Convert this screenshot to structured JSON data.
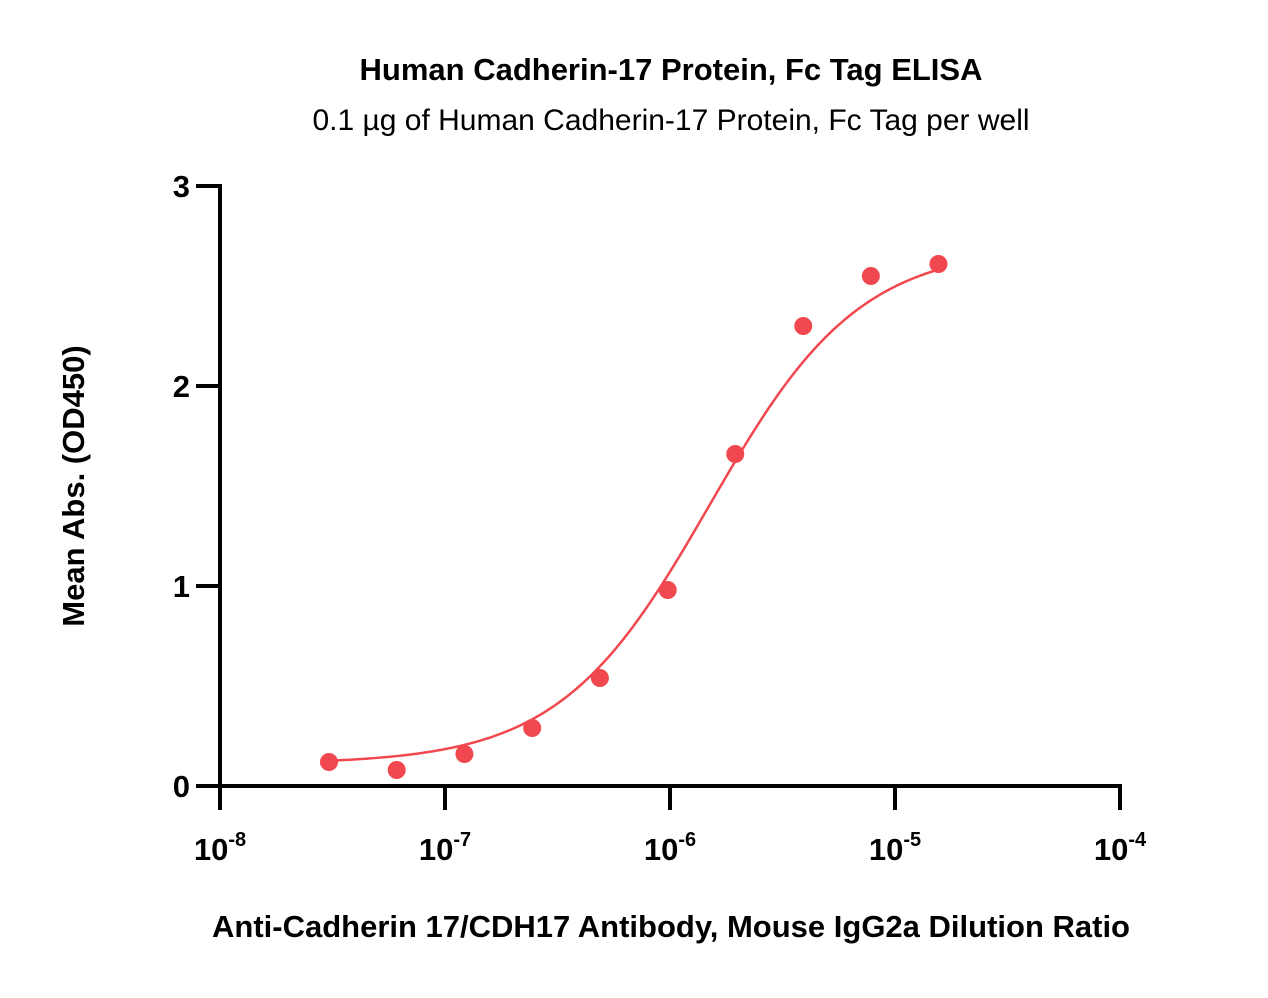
{
  "chart_data": {
    "type": "scatter",
    "title": "Human Cadherin-17 Protein, Fc Tag ELISA",
    "subtitle": "0.1 µg of Human Cadherin-17 Protein, Fc Tag per well",
    "xlabel": "Anti-Cadherin 17/CDH17 Antibody, Mouse IgG2a Dilution Ratio",
    "ylabel": "Mean Abs. (OD450)",
    "x_scale": "log",
    "xlim": [
      1e-08,
      0.0001
    ],
    "ylim": [
      0,
      3
    ],
    "x_ticks": [
      {
        "value": 1e-08,
        "base": "10",
        "exp": "-8"
      },
      {
        "value": 1e-07,
        "base": "10",
        "exp": "-7"
      },
      {
        "value": 1e-06,
        "base": "10",
        "exp": "-6"
      },
      {
        "value": 1e-05,
        "base": "10",
        "exp": "-5"
      },
      {
        "value": 0.0001,
        "base": "10",
        "exp": "-4"
      }
    ],
    "y_ticks": [
      {
        "value": 0,
        "label": "0"
      },
      {
        "value": 1,
        "label": "1"
      },
      {
        "value": 2,
        "label": "2"
      },
      {
        "value": 3,
        "label": "3"
      }
    ],
    "grid": false,
    "legend": "none",
    "series": [
      {
        "color": "#f0484e",
        "x": [
          3.05e-08,
          6.1e-08,
          1.22e-07,
          2.44e-07,
          4.88e-07,
          9.77e-07,
          1.95e-06,
          3.91e-06,
          7.81e-06,
          1.56e-05
        ],
        "y": [
          0.12,
          0.08,
          0.16,
          0.29,
          0.54,
          0.98,
          1.66,
          2.3,
          2.55,
          2.61
        ],
        "fit": {
          "model": "4PL",
          "bottom": 0.11,
          "top": 2.7,
          "ec50": 1.5e-06,
          "hill": 1.3,
          "x_range": [
            3.05e-08,
            1.56e-05
          ]
        }
      }
    ]
  }
}
